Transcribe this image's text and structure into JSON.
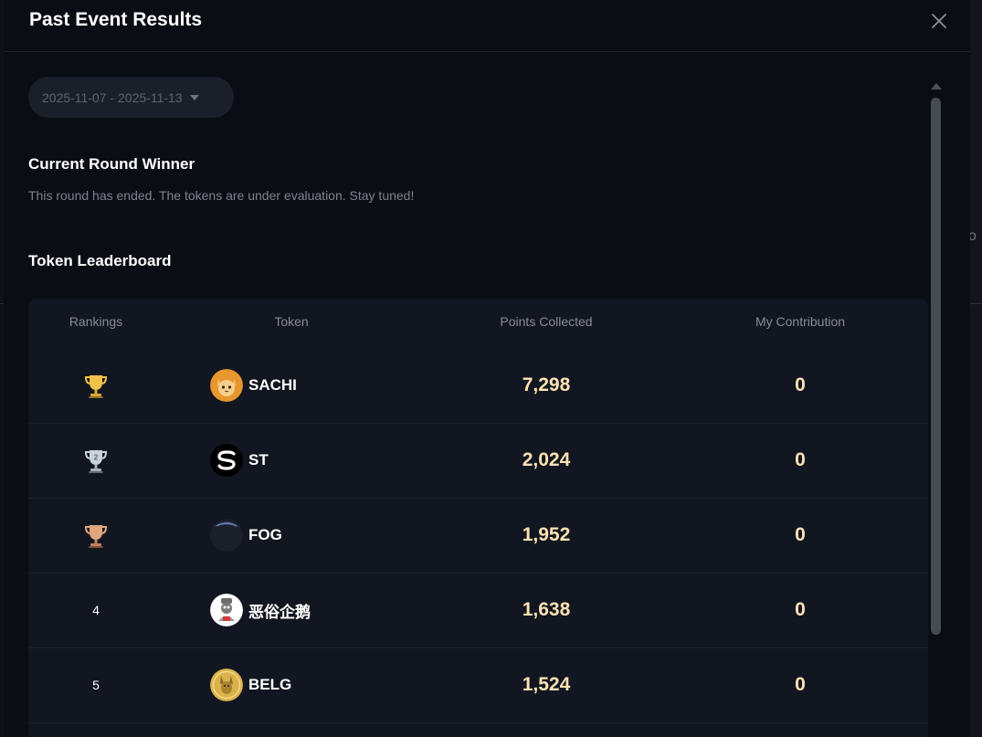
{
  "modal": {
    "title": "Past Event Results",
    "close_icon": "close-icon"
  },
  "date_range": {
    "label": "2025-11-07 - 2025-11-13",
    "icon": "caret-down-icon"
  },
  "winner": {
    "title": "Current Round Winner",
    "message": "This round has ended. The tokens are under evaluation. Stay tuned!"
  },
  "leaderboard": {
    "title": "Token Leaderboard",
    "columns": [
      "Rankings",
      "Token",
      "Points Collected",
      "My Contribution"
    ],
    "rows": [
      {
        "rank": "1",
        "rank_icon": "gold-trophy-icon",
        "token": "SACHI",
        "avatar": "cat-avatar-icon",
        "points": "7,298",
        "contribution": "0"
      },
      {
        "rank": "2",
        "rank_icon": "silver-trophy-icon",
        "token": "ST",
        "avatar": "s-logo-avatar-icon",
        "points": "2,024",
        "contribution": "0"
      },
      {
        "rank": "3",
        "rank_icon": "bronze-trophy-icon",
        "token": "FOG",
        "avatar": "fog-avatar-icon",
        "points": "1,952",
        "contribution": "0"
      },
      {
        "rank": "4",
        "rank_icon": "",
        "token": "恶俗企鹅",
        "avatar": "penguin-avatar-icon",
        "points": "1,638",
        "contribution": "0"
      },
      {
        "rank": "5",
        "rank_icon": "",
        "token": "BELG",
        "avatar": "dog-coin-avatar-icon",
        "points": "1,524",
        "contribution": "0"
      }
    ]
  },
  "colors": {
    "background": "#0a0d14",
    "table_bg": "#121620",
    "points_color": "#ffe2b4",
    "muted_text": "#7d8491"
  }
}
